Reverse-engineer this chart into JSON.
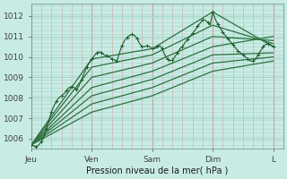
{
  "xlabel": "Pression niveau de la mer( hPa )",
  "background_color": "#c8ece4",
  "plot_bg_color": "#c8ece4",
  "grid_color_v": "#d4a0a0",
  "grid_color_h": "#a8d4cc",
  "ylim": [
    1005.5,
    1012.6
  ],
  "xlim": [
    0,
    100
  ],
  "xtick_positions": [
    0,
    24,
    48,
    72,
    96
  ],
  "xtick_labels": [
    "Jeu",
    "Ven",
    "Sam",
    "Dim",
    "L"
  ],
  "ytick_positions": [
    1006,
    1007,
    1008,
    1009,
    1010,
    1011,
    1012
  ],
  "ytick_labels": [
    "1006",
    "1007",
    "1008",
    "1009",
    "1010",
    "1011",
    "1012"
  ],
  "main_color": "#1e5c28",
  "ensemble_color": "#2e7040",
  "series_main": {
    "x": [
      0,
      1,
      2,
      3,
      4,
      5,
      6,
      7,
      8,
      9,
      10,
      11,
      12,
      13,
      14,
      15,
      16,
      17,
      18,
      19,
      20,
      21,
      22,
      23,
      24,
      25,
      26,
      27,
      28,
      29,
      30,
      31,
      32,
      33,
      34,
      35,
      36,
      37,
      38,
      39,
      40,
      41,
      42,
      43,
      44,
      45,
      46,
      47,
      48,
      49,
      50,
      51,
      52,
      53,
      54,
      55,
      56,
      57,
      58,
      59,
      60,
      61,
      62,
      63,
      64,
      65,
      66,
      67,
      68,
      69,
      70,
      71,
      72,
      73,
      74,
      75,
      76,
      77,
      78,
      79,
      80,
      81,
      82,
      83,
      84,
      85,
      86,
      87,
      88,
      89,
      90,
      91,
      92,
      93,
      94,
      95,
      96
    ],
    "y": [
      1005.7,
      1005.65,
      1005.6,
      1005.7,
      1005.85,
      1006.1,
      1006.5,
      1006.9,
      1007.3,
      1007.6,
      1007.85,
      1008.0,
      1008.1,
      1008.2,
      1008.35,
      1008.5,
      1008.55,
      1008.5,
      1008.4,
      1008.6,
      1008.9,
      1009.2,
      1009.5,
      1009.7,
      1009.9,
      1010.05,
      1010.2,
      1010.25,
      1010.2,
      1010.1,
      1010.05,
      1010.0,
      1009.9,
      1009.85,
      1009.8,
      1010.2,
      1010.55,
      1010.8,
      1010.95,
      1011.05,
      1011.1,
      1011.05,
      1010.9,
      1010.65,
      1010.5,
      1010.5,
      1010.55,
      1010.5,
      1010.4,
      1010.4,
      1010.5,
      1010.55,
      1010.4,
      1010.1,
      1009.9,
      1009.8,
      1009.85,
      1010.0,
      1010.2,
      1010.4,
      1010.5,
      1010.7,
      1010.85,
      1011.0,
      1011.15,
      1011.3,
      1011.5,
      1011.65,
      1011.8,
      1011.8,
      1011.7,
      1011.55,
      1012.2,
      1011.85,
      1011.6,
      1011.4,
      1011.2,
      1011.05,
      1010.9,
      1010.75,
      1010.6,
      1010.45,
      1010.3,
      1010.2,
      1010.1,
      1010.0,
      1009.9,
      1009.8,
      1009.8,
      1009.9,
      1010.1,
      1010.3,
      1010.5,
      1010.6,
      1010.65,
      1010.6,
      1010.5
    ]
  },
  "ensemble_lines": [
    {
      "x": [
        0,
        24,
        48,
        72,
        96
      ],
      "y": [
        1005.7,
        1009.9,
        1010.4,
        1012.2,
        1010.5
      ]
    },
    {
      "x": [
        0,
        24,
        48,
        72,
        96
      ],
      "y": [
        1005.7,
        1009.5,
        1010.1,
        1011.55,
        1010.65
      ]
    },
    {
      "x": [
        0,
        24,
        48,
        72,
        96
      ],
      "y": [
        1005.7,
        1009.0,
        1009.7,
        1011.0,
        1010.8
      ]
    },
    {
      "x": [
        0,
        24,
        48,
        72,
        96
      ],
      "y": [
        1005.7,
        1008.5,
        1009.3,
        1010.5,
        1011.0
      ]
    },
    {
      "x": [
        0,
        24,
        48,
        72,
        96
      ],
      "y": [
        1005.7,
        1008.1,
        1008.9,
        1010.1,
        1010.2
      ]
    },
    {
      "x": [
        0,
        24,
        48,
        72,
        96
      ],
      "y": [
        1005.7,
        1007.7,
        1008.5,
        1009.7,
        1010.0
      ]
    },
    {
      "x": [
        0,
        24,
        48,
        72,
        96
      ],
      "y": [
        1005.7,
        1007.3,
        1008.1,
        1009.3,
        1009.8
      ]
    }
  ]
}
